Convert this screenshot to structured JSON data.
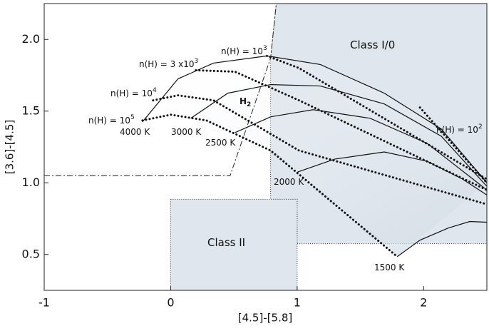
{
  "chart_data": {
    "type": "line",
    "xlabel": "[4.5]-[5.8]",
    "ylabel": "[3.6]-[4.5]",
    "xlim": [
      -1,
      2.5
    ],
    "ylim": [
      0.25,
      2.25
    ],
    "xticks": [
      -1,
      0,
      1,
      2
    ],
    "yticks": [
      0.5,
      {
        "value": 1.0,
        "label": "1.0"
      },
      1.5,
      {
        "value": 2.0,
        "label": "2.0"
      }
    ],
    "regions": [
      {
        "name": "Class I/0",
        "color": "#dfe6ed",
        "x": [
          0.835,
          2.5,
          2.5,
          1.0,
          1.0,
          0.79,
          0.79
        ],
        "values": [
          2.25,
          2.25,
          0.575,
          0.575,
          0.885,
          0.885,
          1.87
        ]
      },
      {
        "name": "Class II",
        "color": "#dfe6ed",
        "x": [
          0,
          1.0,
          1.0,
          0
        ],
        "values": [
          0.885,
          0.885,
          0.25,
          0.25
        ]
      }
    ],
    "boundary": {
      "x": [
        -1,
        0.47,
        0.79,
        0.835
      ],
      "values": [
        1.05,
        1.05,
        1.87,
        2.25
      ]
    },
    "curves": [
      {
        "style": "solid",
        "x": [
          -0.223,
          0.058,
          0.339,
          0.761,
          1.183,
          1.689,
          2.14,
          2.5
        ],
        "values": [
          1.425,
          1.725,
          1.835,
          1.885,
          1.825,
          1.625,
          1.375,
          1.0
        ]
      },
      {
        "style": "solid",
        "x": [
          0.159,
          0.452,
          0.79,
          1.183,
          1.689,
          2.14,
          2.5
        ],
        "values": [
          1.45,
          1.625,
          1.685,
          1.675,
          1.55,
          1.325,
          0.975
        ]
      },
      {
        "style": "solid",
        "x": [
          0.508,
          0.79,
          1.127,
          1.577,
          2.028,
          2.5
        ],
        "values": [
          1.35,
          1.46,
          1.51,
          1.45,
          1.275,
          0.95
        ]
      },
      {
        "style": "solid",
        "x": [
          1.003,
          1.296,
          1.689,
          2.028,
          2.309,
          2.5
        ],
        "values": [
          1.075,
          1.165,
          1.215,
          1.15,
          1.025,
          0.915
        ]
      },
      {
        "style": "solid",
        "x": [
          1.791,
          1.971,
          2.196,
          2.365,
          2.5
        ],
        "values": [
          0.485,
          0.6,
          0.685,
          0.73,
          0.725
        ]
      },
      {
        "style": "dotted",
        "x": [
          -0.223,
          0.002,
          0.283,
          0.79,
          1.791
        ],
        "values": [
          1.435,
          1.475,
          1.435,
          1.225,
          0.485
        ]
      },
      {
        "style": "dotted",
        "x": [
          -0.139,
          0.058,
          0.339,
          1.015,
          2.5
        ],
        "values": [
          1.575,
          1.61,
          1.575,
          1.225,
          0.85
        ]
      },
      {
        "style": "dotted",
        "x": [
          0.199,
          0.508,
          1.015,
          2.5
        ],
        "values": [
          1.785,
          1.775,
          1.575,
          0.95
        ]
      },
      {
        "style": "dotted",
        "x": [
          0.761,
          1.015,
          2.5
        ],
        "values": [
          1.885,
          1.8,
          1.025
        ]
      },
      {
        "style": "dotted",
        "x": [
          1.971,
          2.5
        ],
        "values": [
          1.525,
          1.0
        ]
      }
    ],
    "annotations": [
      {
        "text": "n(H) = 10",
        "sup": "3"
      },
      {
        "text": "n(H) = 3 x10",
        "sup": "3"
      },
      {
        "text": "n(H) = 10",
        "sup": "4"
      },
      {
        "text": "n(H) = 10",
        "sup": "5"
      },
      {
        "text": "n(H) = 10",
        "sup": "2"
      },
      {
        "text": "H",
        "sub": "2"
      },
      {
        "text": "4000 K"
      },
      {
        "text": "3000 K"
      },
      {
        "text": "2500 K"
      },
      {
        "text": "2000 K"
      },
      {
        "text": "1500 K"
      },
      {
        "text": "Class I/0"
      },
      {
        "text": "Class II"
      }
    ]
  }
}
